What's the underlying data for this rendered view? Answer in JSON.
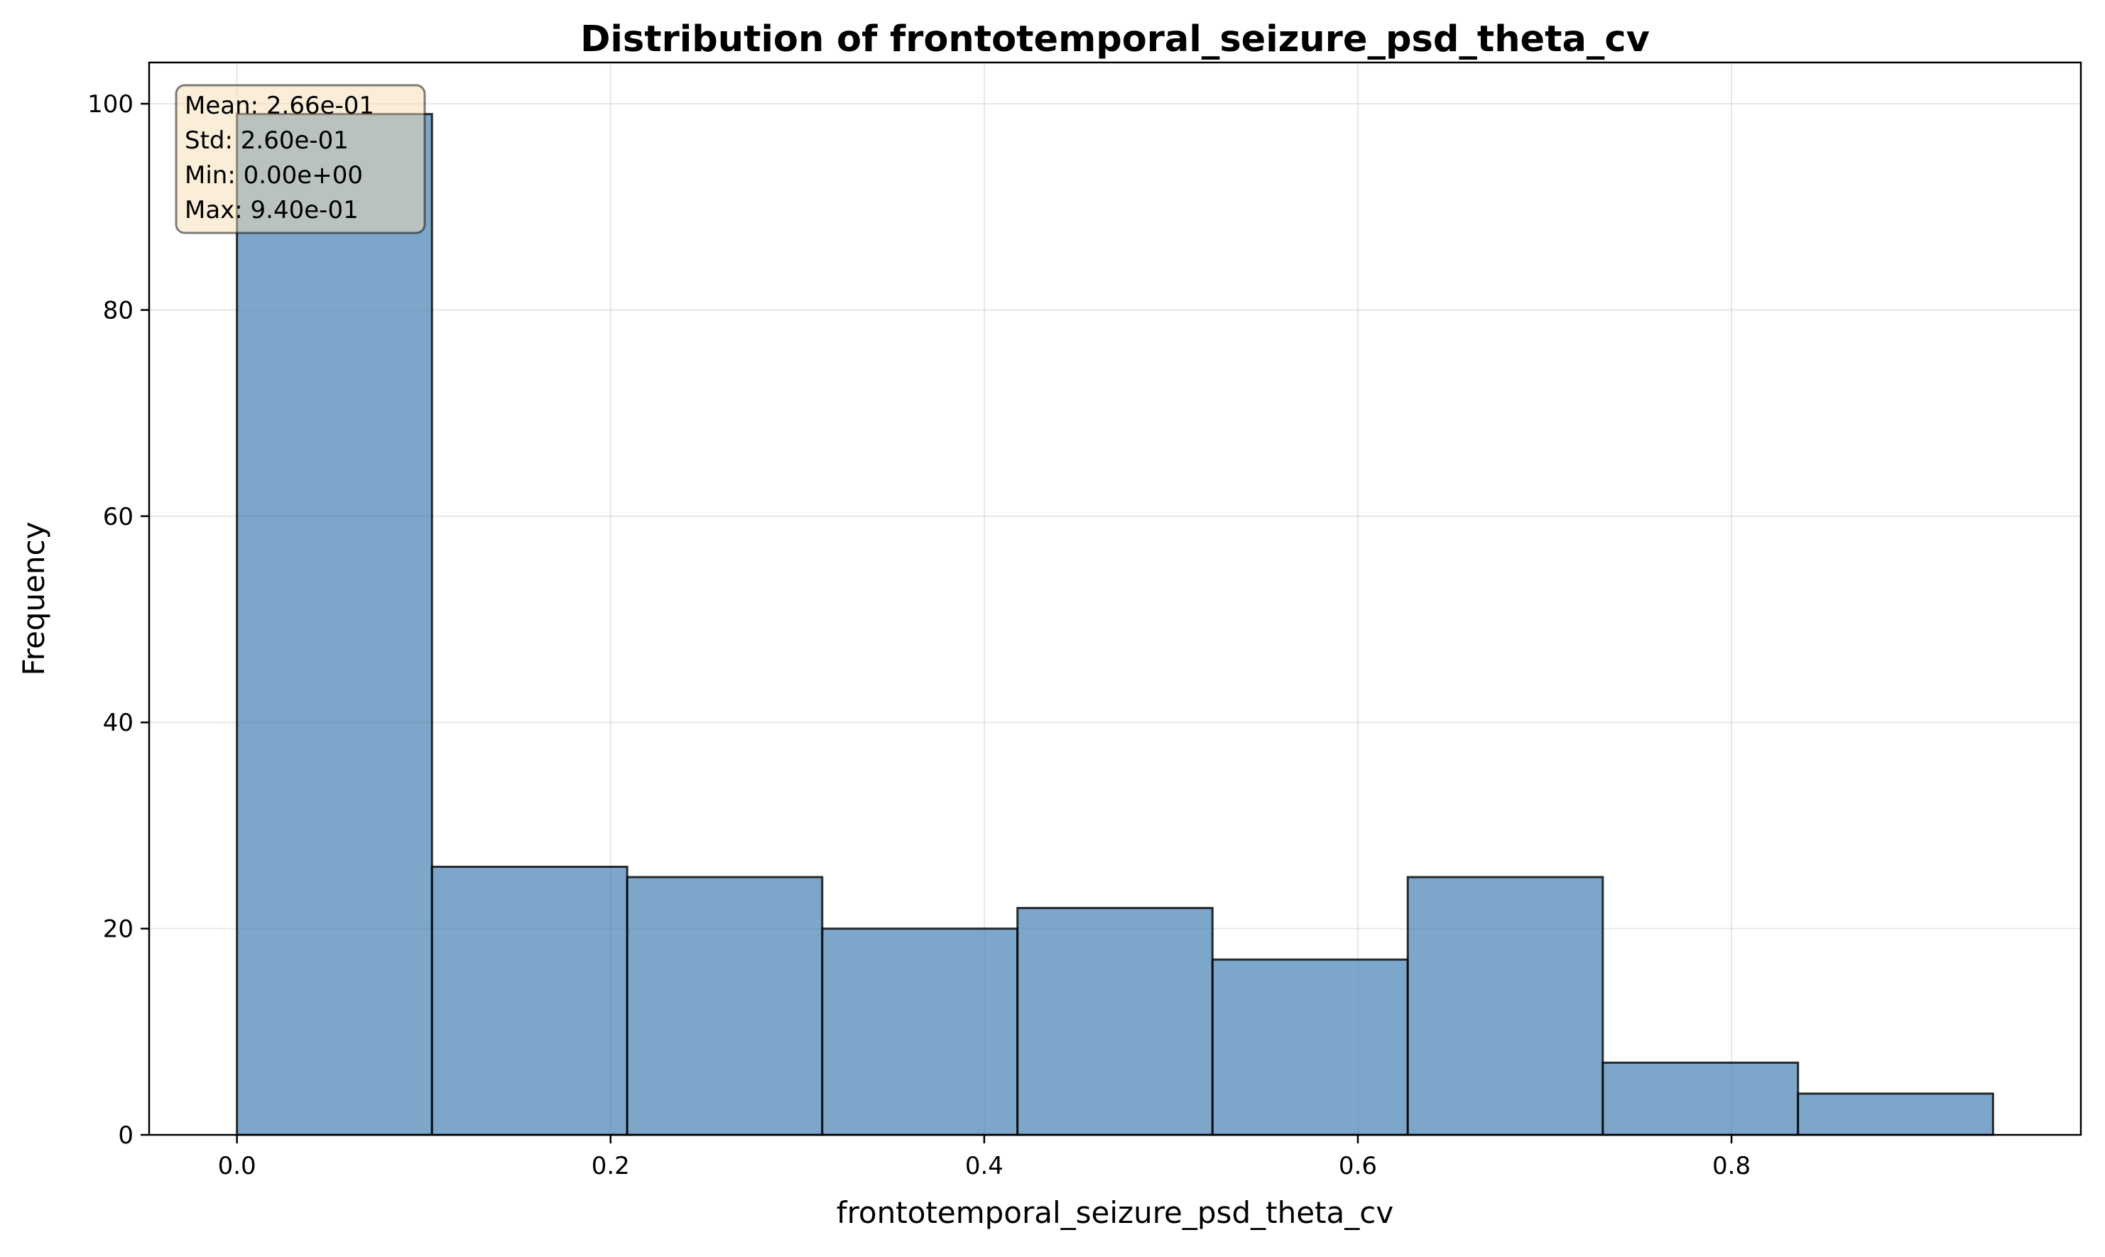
{
  "chart_data": {
    "type": "bar",
    "subtype": "histogram",
    "title": "Distribution of frontotemporal_seizure_psd_theta_cv",
    "xlabel": "frontotemporal_seizure_psd_theta_cv",
    "ylabel": "Frequency",
    "bin_edges": [
      0.0,
      0.1044,
      0.2089,
      0.3133,
      0.4178,
      0.5222,
      0.6267,
      0.7311,
      0.8356,
      0.94
    ],
    "values": [
      99,
      26,
      25,
      20,
      22,
      17,
      25,
      7,
      4
    ],
    "xlim": [
      -0.047,
      0.987
    ],
    "ylim": [
      0,
      104
    ],
    "xticks": [
      0.0,
      0.2,
      0.4,
      0.6,
      0.8
    ],
    "xtick_labels": [
      "0.0",
      "0.2",
      "0.4",
      "0.6",
      "0.8"
    ],
    "yticks": [
      0,
      20,
      40,
      60,
      80,
      100
    ],
    "ytick_labels": [
      "0",
      "20",
      "40",
      "60",
      "80",
      "100"
    ],
    "grid": true,
    "bar_color": "#4682b4",
    "bar_alpha": 0.7,
    "edge_color": "#000000",
    "stats_box": {
      "position": "top-left",
      "background": "#f5deb3",
      "lines": [
        "Mean: 2.66e-01",
        "Std: 2.60e-01",
        "Min: 0.00e+00",
        "Max: 9.40e-01"
      ]
    }
  }
}
